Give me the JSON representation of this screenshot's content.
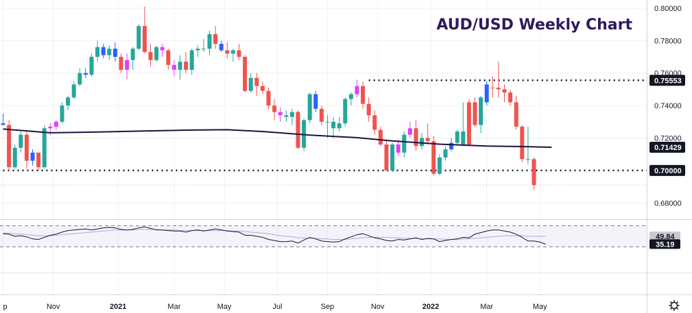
{
  "chart_data": {
    "type": "candlestick",
    "title": "AUD/USD Weekly Chart",
    "x_tick_labels": [
      {
        "label": "p",
        "week": 0,
        "bold": false
      },
      {
        "label": "Nov",
        "week": 8.5,
        "bold": false
      },
      {
        "label": "2021",
        "week": 19.5,
        "bold": true
      },
      {
        "label": "Mar",
        "week": 29,
        "bold": false
      },
      {
        "label": "May",
        "week": 37.5,
        "bold": false
      },
      {
        "label": "Jul",
        "week": 46.5,
        "bold": false
      },
      {
        "label": "Sep",
        "week": 55,
        "bold": false
      },
      {
        "label": "Nov",
        "week": 63.5,
        "bold": false
      },
      {
        "label": "2022",
        "week": 72.5,
        "bold": true
      },
      {
        "label": "Mar",
        "week": 82,
        "bold": false
      },
      {
        "label": "May",
        "week": 91,
        "bold": false
      }
    ],
    "price_axis": {
      "ylim": [
        0.67,
        0.805
      ],
      "ticks": [
        "0.80000",
        "0.78000",
        "0.76000",
        "0.74000",
        "0.72000",
        "0.68000"
      ],
      "tick_values": [
        0.8,
        0.78,
        0.76,
        0.74,
        0.72,
        0.68
      ]
    },
    "price_badges": [
      {
        "label": "0.75553",
        "value": 0.75553,
        "color": "#131722"
      },
      {
        "label": "0.71429",
        "value": 0.71429,
        "color": "#131722"
      },
      {
        "label": "0.70000",
        "value": 0.7,
        "color": "#131722"
      }
    ],
    "horizontal_levels": [
      {
        "value": 0.75553,
        "from_week": 62,
        "style": "dotted"
      },
      {
        "value": 0.7,
        "from_week": 0,
        "style": "dotted"
      }
    ],
    "candles": [
      {
        "o": 0.729,
        "h": 0.735,
        "l": 0.728,
        "c": 0.728,
        "color": "blue"
      },
      {
        "o": 0.728,
        "h": 0.731,
        "l": 0.7,
        "c": 0.702,
        "color": "red"
      },
      {
        "o": 0.702,
        "h": 0.716,
        "l": 0.701,
        "c": 0.714,
        "color": "green"
      },
      {
        "o": 0.714,
        "h": 0.724,
        "l": 0.711,
        "c": 0.722,
        "color": "green"
      },
      {
        "o": 0.722,
        "h": 0.724,
        "l": 0.701,
        "c": 0.706,
        "color": "red"
      },
      {
        "o": 0.706,
        "h": 0.713,
        "l": 0.703,
        "c": 0.711,
        "color": "blue"
      },
      {
        "o": 0.711,
        "h": 0.711,
        "l": 0.7,
        "c": 0.702,
        "color": "red"
      },
      {
        "o": 0.702,
        "h": 0.728,
        "l": 0.701,
        "c": 0.726,
        "color": "green"
      },
      {
        "o": 0.726,
        "h": 0.729,
        "l": 0.722,
        "c": 0.727,
        "color": "magenta"
      },
      {
        "o": 0.727,
        "h": 0.731,
        "l": 0.725,
        "c": 0.73,
        "color": "magenta"
      },
      {
        "o": 0.73,
        "h": 0.742,
        "l": 0.729,
        "c": 0.74,
        "color": "green"
      },
      {
        "o": 0.74,
        "h": 0.746,
        "l": 0.737,
        "c": 0.745,
        "color": "green"
      },
      {
        "o": 0.745,
        "h": 0.755,
        "l": 0.744,
        "c": 0.753,
        "color": "green"
      },
      {
        "o": 0.753,
        "h": 0.763,
        "l": 0.752,
        "c": 0.76,
        "color": "green"
      },
      {
        "o": 0.76,
        "h": 0.763,
        "l": 0.757,
        "c": 0.759,
        "color": "blue"
      },
      {
        "o": 0.759,
        "h": 0.772,
        "l": 0.758,
        "c": 0.77,
        "color": "green"
      },
      {
        "o": 0.77,
        "h": 0.78,
        "l": 0.767,
        "c": 0.776,
        "color": "green"
      },
      {
        "o": 0.776,
        "h": 0.778,
        "l": 0.769,
        "c": 0.771,
        "color": "blue"
      },
      {
        "o": 0.771,
        "h": 0.777,
        "l": 0.768,
        "c": 0.775,
        "color": "green"
      },
      {
        "o": 0.775,
        "h": 0.779,
        "l": 0.767,
        "c": 0.77,
        "color": "blue"
      },
      {
        "o": 0.77,
        "h": 0.772,
        "l": 0.76,
        "c": 0.762,
        "color": "red"
      },
      {
        "o": 0.762,
        "h": 0.772,
        "l": 0.756,
        "c": 0.768,
        "color": "magenta"
      },
      {
        "o": 0.768,
        "h": 0.776,
        "l": 0.762,
        "c": 0.775,
        "color": "green"
      },
      {
        "o": 0.775,
        "h": 0.79,
        "l": 0.774,
        "c": 0.789,
        "color": "green"
      },
      {
        "o": 0.789,
        "h": 0.801,
        "l": 0.772,
        "c": 0.773,
        "color": "red"
      },
      {
        "o": 0.773,
        "h": 0.778,
        "l": 0.764,
        "c": 0.768,
        "color": "red"
      },
      {
        "o": 0.768,
        "h": 0.777,
        "l": 0.767,
        "c": 0.776,
        "color": "green"
      },
      {
        "o": 0.776,
        "h": 0.778,
        "l": 0.77,
        "c": 0.774,
        "color": "magenta"
      },
      {
        "o": 0.774,
        "h": 0.775,
        "l": 0.762,
        "c": 0.765,
        "color": "red"
      },
      {
        "o": 0.765,
        "h": 0.768,
        "l": 0.758,
        "c": 0.762,
        "color": "magenta"
      },
      {
        "o": 0.762,
        "h": 0.771,
        "l": 0.756,
        "c": 0.767,
        "color": "green"
      },
      {
        "o": 0.767,
        "h": 0.773,
        "l": 0.76,
        "c": 0.762,
        "color": "red"
      },
      {
        "o": 0.762,
        "h": 0.775,
        "l": 0.759,
        "c": 0.774,
        "color": "green"
      },
      {
        "o": 0.774,
        "h": 0.777,
        "l": 0.77,
        "c": 0.775,
        "color": "green"
      },
      {
        "o": 0.775,
        "h": 0.781,
        "l": 0.773,
        "c": 0.775,
        "color": "green"
      },
      {
        "o": 0.775,
        "h": 0.786,
        "l": 0.771,
        "c": 0.784,
        "color": "green"
      },
      {
        "o": 0.784,
        "h": 0.789,
        "l": 0.775,
        "c": 0.778,
        "color": "red"
      },
      {
        "o": 0.778,
        "h": 0.78,
        "l": 0.773,
        "c": 0.774,
        "color": "blue"
      },
      {
        "o": 0.774,
        "h": 0.779,
        "l": 0.769,
        "c": 0.772,
        "color": "red"
      },
      {
        "o": 0.772,
        "h": 0.775,
        "l": 0.767,
        "c": 0.774,
        "color": "green"
      },
      {
        "o": 0.774,
        "h": 0.778,
        "l": 0.768,
        "c": 0.77,
        "color": "red"
      },
      {
        "o": 0.77,
        "h": 0.771,
        "l": 0.748,
        "c": 0.749,
        "color": "red"
      },
      {
        "o": 0.749,
        "h": 0.76,
        "l": 0.748,
        "c": 0.757,
        "color": "green"
      },
      {
        "o": 0.757,
        "h": 0.76,
        "l": 0.746,
        "c": 0.752,
        "color": "red"
      },
      {
        "o": 0.752,
        "h": 0.755,
        "l": 0.747,
        "c": 0.749,
        "color": "red"
      },
      {
        "o": 0.749,
        "h": 0.751,
        "l": 0.738,
        "c": 0.74,
        "color": "red"
      },
      {
        "o": 0.74,
        "h": 0.744,
        "l": 0.731,
        "c": 0.736,
        "color": "red"
      },
      {
        "o": 0.736,
        "h": 0.739,
        "l": 0.73,
        "c": 0.734,
        "color": "magenta"
      },
      {
        "o": 0.734,
        "h": 0.737,
        "l": 0.73,
        "c": 0.733,
        "color": "green"
      },
      {
        "o": 0.733,
        "h": 0.738,
        "l": 0.728,
        "c": 0.736,
        "color": "green"
      },
      {
        "o": 0.736,
        "h": 0.737,
        "l": 0.713,
        "c": 0.714,
        "color": "red"
      },
      {
        "o": 0.714,
        "h": 0.732,
        "l": 0.712,
        "c": 0.731,
        "color": "green"
      },
      {
        "o": 0.731,
        "h": 0.748,
        "l": 0.729,
        "c": 0.747,
        "color": "green"
      },
      {
        "o": 0.747,
        "h": 0.749,
        "l": 0.736,
        "c": 0.738,
        "color": "blue"
      },
      {
        "o": 0.738,
        "h": 0.74,
        "l": 0.728,
        "c": 0.73,
        "color": "red"
      },
      {
        "o": 0.73,
        "h": 0.734,
        "l": 0.72,
        "c": 0.73,
        "color": "green"
      },
      {
        "o": 0.73,
        "h": 0.733,
        "l": 0.72,
        "c": 0.726,
        "color": "green"
      },
      {
        "o": 0.726,
        "h": 0.733,
        "l": 0.724,
        "c": 0.729,
        "color": "green"
      },
      {
        "o": 0.729,
        "h": 0.745,
        "l": 0.727,
        "c": 0.744,
        "color": "green"
      },
      {
        "o": 0.744,
        "h": 0.748,
        "l": 0.74,
        "c": 0.747,
        "color": "green"
      },
      {
        "o": 0.747,
        "h": 0.756,
        "l": 0.745,
        "c": 0.752,
        "color": "magenta"
      },
      {
        "o": 0.752,
        "h": 0.755,
        "l": 0.738,
        "c": 0.741,
        "color": "red"
      },
      {
        "o": 0.741,
        "h": 0.745,
        "l": 0.73,
        "c": 0.734,
        "color": "red"
      },
      {
        "o": 0.734,
        "h": 0.737,
        "l": 0.722,
        "c": 0.725,
        "color": "red"
      },
      {
        "o": 0.725,
        "h": 0.727,
        "l": 0.715,
        "c": 0.716,
        "color": "red"
      },
      {
        "o": 0.716,
        "h": 0.718,
        "l": 0.7,
        "c": 0.7,
        "color": "red"
      },
      {
        "o": 0.7,
        "h": 0.717,
        "l": 0.699,
        "c": 0.716,
        "color": "green"
      },
      {
        "o": 0.716,
        "h": 0.719,
        "l": 0.709,
        "c": 0.711,
        "color": "magenta"
      },
      {
        "o": 0.711,
        "h": 0.724,
        "l": 0.708,
        "c": 0.722,
        "color": "green"
      },
      {
        "o": 0.722,
        "h": 0.73,
        "l": 0.72,
        "c": 0.726,
        "color": "magenta"
      },
      {
        "o": 0.726,
        "h": 0.731,
        "l": 0.712,
        "c": 0.715,
        "color": "red"
      },
      {
        "o": 0.715,
        "h": 0.723,
        "l": 0.713,
        "c": 0.72,
        "color": "green"
      },
      {
        "o": 0.72,
        "h": 0.729,
        "l": 0.716,
        "c": 0.718,
        "color": "red"
      },
      {
        "o": 0.718,
        "h": 0.721,
        "l": 0.697,
        "c": 0.698,
        "color": "red"
      },
      {
        "o": 0.698,
        "h": 0.71,
        "l": 0.697,
        "c": 0.708,
        "color": "green"
      },
      {
        "o": 0.708,
        "h": 0.715,
        "l": 0.706,
        "c": 0.713,
        "color": "green"
      },
      {
        "o": 0.713,
        "h": 0.72,
        "l": 0.712,
        "c": 0.717,
        "color": "blue"
      },
      {
        "o": 0.717,
        "h": 0.725,
        "l": 0.716,
        "c": 0.724,
        "color": "green"
      },
      {
        "o": 0.724,
        "h": 0.742,
        "l": 0.715,
        "c": 0.716,
        "color": "green"
      },
      {
        "o": 0.716,
        "h": 0.744,
        "l": 0.715,
        "c": 0.742,
        "color": "red"
      },
      {
        "o": 0.742,
        "h": 0.745,
        "l": 0.727,
        "c": 0.728,
        "color": "red"
      },
      {
        "o": 0.728,
        "h": 0.746,
        "l": 0.723,
        "c": 0.745,
        "color": "green"
      },
      {
        "o": 0.742,
        "h": 0.755,
        "l": 0.74,
        "c": 0.753,
        "color": "blue"
      },
      {
        "o": 0.751,
        "h": 0.758,
        "l": 0.745,
        "c": 0.751,
        "color": "red"
      },
      {
        "o": 0.751,
        "h": 0.767,
        "l": 0.745,
        "c": 0.75,
        "color": "red"
      },
      {
        "o": 0.75,
        "h": 0.753,
        "l": 0.742,
        "c": 0.748,
        "color": "red"
      },
      {
        "o": 0.748,
        "h": 0.75,
        "l": 0.74,
        "c": 0.742,
        "color": "red"
      },
      {
        "o": 0.742,
        "h": 0.746,
        "l": 0.725,
        "c": 0.727,
        "color": "red"
      },
      {
        "o": 0.727,
        "h": 0.728,
        "l": 0.705,
        "c": 0.707,
        "color": "red"
      },
      {
        "o": 0.707,
        "h": 0.727,
        "l": 0.704,
        "c": 0.707,
        "color": "green"
      },
      {
        "o": 0.707,
        "h": 0.708,
        "l": 0.688,
        "c": 0.691,
        "color": "red"
      }
    ],
    "moving_average": {
      "color": "#1d1240",
      "points": [
        [
          0,
          0.7255
        ],
        [
          8,
          0.7232
        ],
        [
          16,
          0.7237
        ],
        [
          24,
          0.7243
        ],
        [
          32,
          0.7249
        ],
        [
          38,
          0.7251
        ],
        [
          44,
          0.724
        ],
        [
          52,
          0.7218
        ],
        [
          60,
          0.7202
        ],
        [
          66,
          0.7182
        ],
        [
          74,
          0.7162
        ],
        [
          82,
          0.715
        ],
        [
          88,
          0.7147
        ],
        [
          93,
          0.7143
        ]
      ]
    },
    "rsi": {
      "badges": [
        {
          "label": "49.84",
          "value": 49.84,
          "color": "#c9c9d1",
          "text_color": "#131722"
        },
        {
          "label": "35.19",
          "value": 35.19,
          "color": "#131722",
          "text_color": "#ffffff"
        }
      ],
      "ylim": [
        20,
        80
      ],
      "band": [
        30,
        70
      ],
      "main_color": "#131722",
      "signal_color": "#b7a5d8",
      "main": [
        55,
        54,
        50,
        51,
        49,
        45,
        44,
        48,
        52,
        54,
        58,
        61,
        62,
        63,
        64,
        62,
        64,
        66,
        67,
        66,
        63,
        62,
        63,
        66,
        68,
        65,
        62,
        62,
        61,
        60,
        60,
        58,
        61,
        62,
        60,
        62,
        64,
        62,
        60,
        59,
        58,
        52,
        52,
        50,
        48,
        44,
        42,
        40,
        40,
        41,
        37,
        43,
        48,
        45,
        41,
        40,
        39,
        40,
        45,
        49,
        53,
        55,
        51,
        47,
        45,
        42,
        41,
        44,
        43,
        45,
        47,
        44,
        46,
        45,
        40,
        42,
        44,
        45,
        48,
        47,
        54,
        57,
        60,
        62,
        62,
        60,
        58,
        54,
        48,
        41,
        41,
        39,
        35
      ],
      "signal": [
        56,
        56,
        55,
        54,
        53,
        52,
        51,
        51,
        51,
        52,
        53,
        54,
        55,
        56,
        57,
        58,
        59,
        60,
        61,
        62,
        62,
        62,
        62,
        63,
        63,
        63,
        63,
        62,
        62,
        62,
        61,
        61,
        61,
        61,
        61,
        61,
        61,
        61,
        61,
        60,
        60,
        59,
        58,
        57,
        56,
        55,
        53,
        51,
        50,
        49,
        47,
        47,
        46,
        46,
        45,
        45,
        44,
        44,
        44,
        45,
        46,
        47,
        48,
        48,
        48,
        48,
        47,
        47,
        46,
        46,
        46,
        45,
        45,
        45,
        45,
        44,
        44,
        44,
        45,
        45,
        46,
        47,
        48,
        49,
        50,
        51,
        51,
        51,
        51,
        50,
        50,
        50,
        49.8
      ]
    }
  }
}
